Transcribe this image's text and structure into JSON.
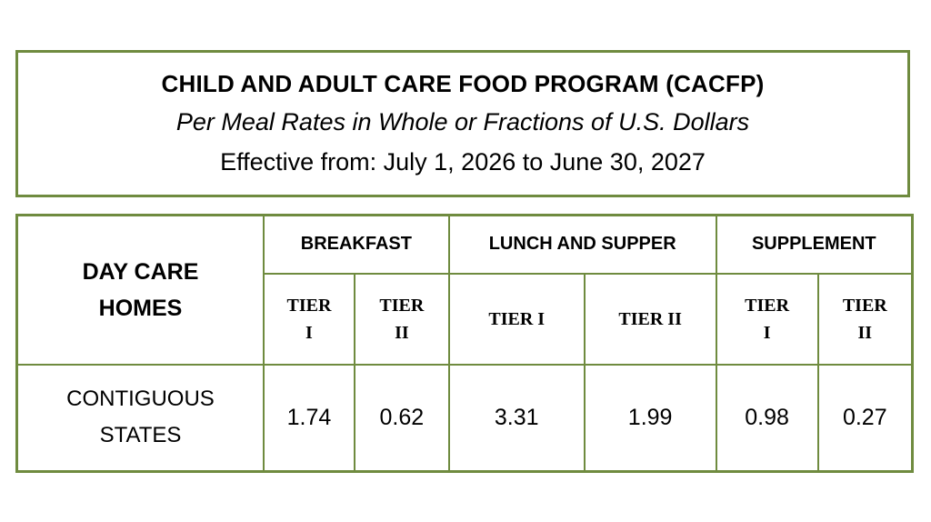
{
  "header": {
    "title": "CHILD AND ADULT CARE FOOD PROGRAM (CACFP)",
    "subtitle": "Per Meal Rates in Whole or Fractions of U.S. Dollars",
    "effective": "Effective from: July 1, 2026 to June 30, 2027"
  },
  "table": {
    "corner_label": "DAY CARE HOMES",
    "groups": [
      "BREAKFAST",
      "LUNCH AND SUPPER",
      "SUPPLEMENT"
    ],
    "tiers": [
      "TIER I",
      "TIER II",
      "TIER I",
      "TIER II",
      "TIER I",
      "TIER II"
    ],
    "row": {
      "label": "CONTIGUOUS STATES",
      "values": [
        "1.74",
        "0.62",
        "3.31",
        "1.99",
        "0.98",
        "0.27"
      ]
    }
  },
  "colors": {
    "border": "#6f8b3f"
  }
}
